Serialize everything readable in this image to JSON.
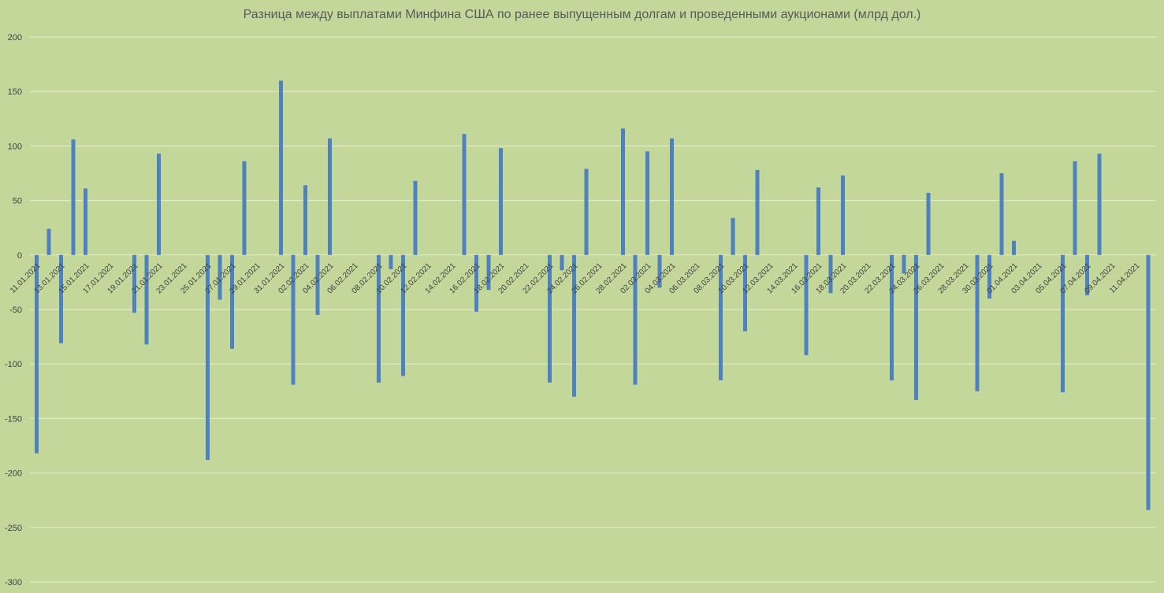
{
  "chart_data": {
    "type": "bar",
    "title": "Разница между выплатами Минфина США по ранее выпущенным долгам и проведенными аукционами (млрд дол.)",
    "xlabel": "",
    "ylabel": "",
    "ylim": [
      -300,
      200
    ],
    "yticks": [
      200,
      150,
      100,
      50,
      0,
      -50,
      -100,
      -150,
      -200,
      -250,
      -300
    ],
    "grid": true,
    "legend": "none",
    "bar_color": "#4f81bd",
    "x_start": "11.01.2021",
    "x_end": "11.04.2021",
    "xtick_labels": [
      "11.01.2021",
      "13.01.2021",
      "15.01.2021",
      "17.01.2021",
      "19.01.2021",
      "21.01.2021",
      "23.01.2021",
      "25.01.2021",
      "27.01.2021",
      "29.01.2021",
      "31.01.2021",
      "02.02.2021",
      "04.02.2021",
      "06.02.2021",
      "08.02.2021",
      "10.02.2021",
      "12.02.2021",
      "14.02.2021",
      "16.02.2021",
      "18.02.2021",
      "20.02.2021",
      "22.02.2021",
      "24.02.2021",
      "26.02.2021",
      "28.02.2021",
      "02.03.2021",
      "04.03.2021",
      "06.03.2021",
      "08.03.2021",
      "10.03.2021",
      "12.03.2021",
      "14.03.2021",
      "16.03.2021",
      "18.03.2021",
      "20.03.2021",
      "22.03.2021",
      "24.03.2021",
      "26.03.2021",
      "28.03.2021",
      "30.03.2021",
      "01.04.2021",
      "03.04.2021",
      "05.04.2021",
      "07.04.2021",
      "09.04.2021",
      "11.04.2021"
    ],
    "points": [
      {
        "x": "11.01.2021",
        "y": -182
      },
      {
        "x": "12.01.2021",
        "y": 24
      },
      {
        "x": "13.01.2021",
        "y": -81
      },
      {
        "x": "14.01.2021",
        "y": 106
      },
      {
        "x": "15.01.2021",
        "y": 61
      },
      {
        "x": "19.01.2021",
        "y": -53
      },
      {
        "x": "20.01.2021",
        "y": -82
      },
      {
        "x": "21.01.2021",
        "y": 93
      },
      {
        "x": "25.01.2021",
        "y": -188
      },
      {
        "x": "26.01.2021",
        "y": -41
      },
      {
        "x": "27.01.2021",
        "y": -86
      },
      {
        "x": "28.01.2021",
        "y": 86
      },
      {
        "x": "31.01.2021",
        "y": 160
      },
      {
        "x": "01.02.2021",
        "y": -119
      },
      {
        "x": "02.02.2021",
        "y": 64
      },
      {
        "x": "03.02.2021",
        "y": -55
      },
      {
        "x": "04.02.2021",
        "y": 107
      },
      {
        "x": "08.02.2021",
        "y": -117
      },
      {
        "x": "09.02.2021",
        "y": -13
      },
      {
        "x": "10.02.2021",
        "y": -111
      },
      {
        "x": "11.02.2021",
        "y": 68
      },
      {
        "x": "15.02.2021",
        "y": 111
      },
      {
        "x": "16.02.2021",
        "y": -52
      },
      {
        "x": "17.02.2021",
        "y": -32
      },
      {
        "x": "18.02.2021",
        "y": 98
      },
      {
        "x": "22.02.2021",
        "y": -117
      },
      {
        "x": "23.02.2021",
        "y": -14
      },
      {
        "x": "24.02.2021",
        "y": -130
      },
      {
        "x": "25.02.2021",
        "y": 79
      },
      {
        "x": "28.02.2021",
        "y": 116
      },
      {
        "x": "01.03.2021",
        "y": -119
      },
      {
        "x": "02.03.2021",
        "y": 95
      },
      {
        "x": "03.03.2021",
        "y": -30
      },
      {
        "x": "04.03.2021",
        "y": 107
      },
      {
        "x": "08.03.2021",
        "y": -115
      },
      {
        "x": "09.03.2021",
        "y": 34
      },
      {
        "x": "10.03.2021",
        "y": -70
      },
      {
        "x": "11.03.2021",
        "y": 78
      },
      {
        "x": "15.03.2021",
        "y": -92
      },
      {
        "x": "16.03.2021",
        "y": 62
      },
      {
        "x": "17.03.2021",
        "y": -35
      },
      {
        "x": "18.03.2021",
        "y": 73
      },
      {
        "x": "22.03.2021",
        "y": -115
      },
      {
        "x": "23.03.2021",
        "y": -17
      },
      {
        "x": "24.03.2021",
        "y": -133
      },
      {
        "x": "25.03.2021",
        "y": 57
      },
      {
        "x": "29.03.2021",
        "y": -125
      },
      {
        "x": "30.03.2021",
        "y": -40
      },
      {
        "x": "31.03.2021",
        "y": 75
      },
      {
        "x": "01.04.2021",
        "y": 13
      },
      {
        "x": "05.04.2021",
        "y": -126
      },
      {
        "x": "06.04.2021",
        "y": 86
      },
      {
        "x": "07.04.2021",
        "y": -37
      },
      {
        "x": "08.04.2021",
        "y": 93
      },
      {
        "x": "12.04.2021",
        "y": -234
      }
    ]
  }
}
